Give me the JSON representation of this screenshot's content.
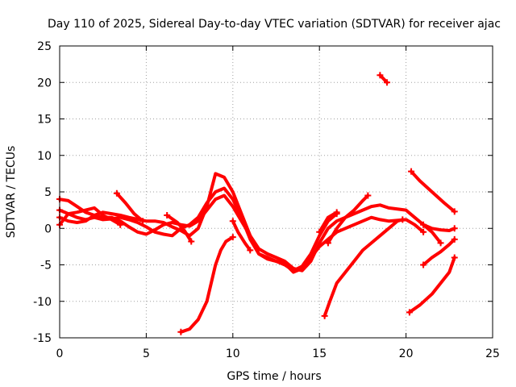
{
  "chart_data": {
    "type": "line",
    "title": "Day 110 of 2025, Sidereal Day-to-day VTEC variation (SDTVAR) for receiver ajac",
    "xlabel": "GPS time / hours",
    "ylabel": "SDTVAR / TECUs",
    "xlim": [
      0,
      25
    ],
    "ylim": [
      -15,
      25
    ],
    "xticks": [
      0,
      5,
      10,
      15,
      20,
      25
    ],
    "yticks": [
      -15,
      -10,
      -5,
      0,
      5,
      10,
      15,
      20,
      25
    ],
    "grid": true,
    "color": "#ff0000",
    "series": [
      {
        "name": "track-1",
        "points": [
          [
            0,
            4
          ],
          [
            0.5,
            3.8
          ],
          [
            1,
            3
          ],
          [
            1.5,
            2.2
          ],
          [
            2,
            1.8
          ],
          [
            2.5,
            1.5
          ],
          [
            3,
            1.5
          ],
          [
            3.5,
            1
          ],
          [
            4,
            0.2
          ],
          [
            4.5,
            -0.5
          ],
          [
            5,
            -0.8
          ],
          [
            5.5,
            -0.2
          ],
          [
            6,
            0.5
          ],
          [
            6.5,
            0.8
          ],
          [
            7,
            0.5
          ],
          [
            7.5,
            0.3
          ],
          [
            8,
            1
          ],
          [
            8.5,
            2.5
          ],
          [
            9,
            4
          ],
          [
            9.5,
            4.5
          ],
          [
            10,
            3
          ],
          [
            10.5,
            1
          ],
          [
            11,
            -1
          ],
          [
            11.5,
            -2.8
          ],
          [
            12,
            -3.5
          ],
          [
            12.5,
            -4
          ],
          [
            13,
            -4.5
          ],
          [
            13.5,
            -5.5
          ],
          [
            14,
            -5.8
          ],
          [
            14.5,
            -4.5
          ],
          [
            15,
            -2
          ],
          [
            15.5,
            0
          ],
          [
            16,
            1
          ],
          [
            17,
            2
          ],
          [
            18,
            3
          ],
          [
            18.5,
            3.2
          ],
          [
            19,
            2.8
          ],
          [
            20,
            2.5
          ],
          [
            20.5,
            1.5
          ],
          [
            21,
            0.5
          ],
          [
            21.5,
            -0.5
          ],
          [
            22,
            -2
          ]
        ]
      },
      {
        "name": "track-2",
        "points": [
          [
            0,
            2.5
          ],
          [
            0.5,
            2
          ],
          [
            1,
            1.5
          ],
          [
            1.5,
            1.2
          ],
          [
            2,
            1.5
          ],
          [
            2.5,
            1.2
          ],
          [
            3,
            1.3
          ],
          [
            3.5,
            1.5
          ],
          [
            4,
            1.2
          ],
          [
            4.5,
            0.8
          ],
          [
            5,
            0.2
          ],
          [
            5.5,
            -0.5
          ],
          [
            6,
            -0.8
          ],
          [
            6.5,
            -1
          ],
          [
            7,
            0
          ],
          [
            7.5,
            0.5
          ],
          [
            8,
            1.5
          ],
          [
            8.5,
            3.5
          ],
          [
            9,
            5
          ],
          [
            9.5,
            5.5
          ],
          [
            10,
            4
          ],
          [
            10.5,
            1.5
          ],
          [
            11,
            -1.5
          ],
          [
            11.5,
            -3.5
          ],
          [
            12,
            -4
          ],
          [
            12.5,
            -4.5
          ],
          [
            13,
            -4.8
          ],
          [
            13.5,
            -6
          ],
          [
            14,
            -5.5
          ],
          [
            14.5,
            -4
          ],
          [
            15,
            -2.5
          ],
          [
            15.5,
            -1.5
          ],
          [
            16,
            -0.5
          ],
          [
            17,
            0.5
          ],
          [
            18,
            1.5
          ],
          [
            18.5,
            1.2
          ],
          [
            19,
            1
          ],
          [
            20,
            1.2
          ],
          [
            20.5,
            0.5
          ],
          [
            21,
            -0.5
          ]
        ]
      },
      {
        "name": "track-3",
        "points": [
          [
            0,
            1.5
          ],
          [
            0.5,
            1
          ],
          [
            1,
            0.8
          ],
          [
            1.5,
            1
          ],
          [
            2,
            1.8
          ],
          [
            2.5,
            2.2
          ],
          [
            3,
            2
          ],
          [
            3.5,
            1.8
          ],
          [
            4,
            1.5
          ],
          [
            5,
            1
          ],
          [
            5.5,
            1
          ],
          [
            6,
            0.8
          ],
          [
            6.5,
            0.2
          ],
          [
            7,
            -0.3
          ],
          [
            7.5,
            -1
          ],
          [
            8,
            0
          ],
          [
            8.5,
            3
          ],
          [
            9,
            7.5
          ],
          [
            9.5,
            7
          ],
          [
            10,
            5
          ],
          [
            10.5,
            2
          ],
          [
            11,
            -1
          ],
          [
            11.5,
            -3.5
          ],
          [
            12,
            -4.2
          ],
          [
            12.5,
            -4.5
          ],
          [
            13,
            -5
          ],
          [
            13.5,
            -5.8
          ],
          [
            14,
            -5.2
          ],
          [
            14.5,
            -3.5
          ],
          [
            15,
            -1
          ],
          [
            15.5,
            1
          ],
          [
            16,
            2
          ]
        ]
      },
      {
        "name": "track-4",
        "points": [
          [
            0,
            0.5
          ],
          [
            0.5,
            2
          ],
          [
            1,
            2.2
          ],
          [
            1.5,
            2.5
          ],
          [
            2,
            2.8
          ],
          [
            2.5,
            1.8
          ],
          [
            3,
            1.2
          ],
          [
            3.5,
            0.5
          ]
        ]
      },
      {
        "name": "track-5",
        "points": [
          [
            3.3,
            4.8
          ],
          [
            3.8,
            3.5
          ],
          [
            4.3,
            2
          ],
          [
            4.8,
            1
          ]
        ]
      },
      {
        "name": "track-6",
        "points": [
          [
            6.2,
            1.8
          ],
          [
            6.8,
            0.8
          ],
          [
            7.2,
            -0.3
          ],
          [
            7.6,
            -1.8
          ]
        ]
      },
      {
        "name": "track-7",
        "points": [
          [
            10,
            1
          ],
          [
            10.3,
            -0.5
          ],
          [
            10.7,
            -2
          ],
          [
            11,
            -3
          ]
        ]
      },
      {
        "name": "track-8",
        "points": [
          [
            7,
            -14.2
          ],
          [
            7.5,
            -13.8
          ],
          [
            8,
            -12.5
          ],
          [
            8.5,
            -10
          ],
          [
            9,
            -5
          ],
          [
            9.3,
            -3
          ],
          [
            9.6,
            -1.8
          ],
          [
            10,
            -1.2
          ]
        ]
      },
      {
        "name": "track-9",
        "points": [
          [
            15.3,
            -12
          ],
          [
            15.6,
            -10
          ],
          [
            16,
            -7.5
          ],
          [
            16.5,
            -6
          ],
          [
            17,
            -4.5
          ],
          [
            17.5,
            -3
          ],
          [
            18,
            -2
          ],
          [
            18.5,
            -1
          ],
          [
            19,
            0
          ],
          [
            19.5,
            1
          ],
          [
            19.8,
            1.2
          ]
        ]
      },
      {
        "name": "track-10",
        "points": [
          [
            15.5,
            -2
          ],
          [
            16,
            0
          ],
          [
            16.5,
            1.5
          ],
          [
            17,
            2.5
          ],
          [
            17.5,
            3.8
          ],
          [
            17.8,
            4.5
          ]
        ]
      },
      {
        "name": "track-11",
        "points": [
          [
            15,
            -0.5
          ],
          [
            15.5,
            1.5
          ],
          [
            16,
            2.2
          ]
        ]
      },
      {
        "name": "track-12",
        "points": [
          [
            18.5,
            21
          ],
          [
            18.9,
            20
          ]
        ]
      },
      {
        "name": "track-13",
        "points": [
          [
            20.3,
            7.8
          ],
          [
            20.8,
            6.5
          ],
          [
            21.5,
            5
          ],
          [
            22.2,
            3.5
          ],
          [
            22.8,
            2.3
          ]
        ]
      },
      {
        "name": "track-14",
        "points": [
          [
            20.2,
            -11.5
          ],
          [
            20.8,
            -10.5
          ],
          [
            21.5,
            -9
          ],
          [
            22,
            -7.5
          ],
          [
            22.5,
            -6
          ],
          [
            22.8,
            -4
          ]
        ]
      },
      {
        "name": "track-15",
        "points": [
          [
            21,
            -5
          ],
          [
            21.5,
            -4
          ],
          [
            22,
            -3.2
          ],
          [
            22.5,
            -2.2
          ],
          [
            22.8,
            -1.5
          ]
        ]
      },
      {
        "name": "track-16",
        "points": [
          [
            21,
            0.5
          ],
          [
            21.5,
            0
          ],
          [
            22,
            -0.2
          ],
          [
            22.5,
            -0.3
          ],
          [
            22.8,
            0
          ]
        ]
      }
    ]
  }
}
